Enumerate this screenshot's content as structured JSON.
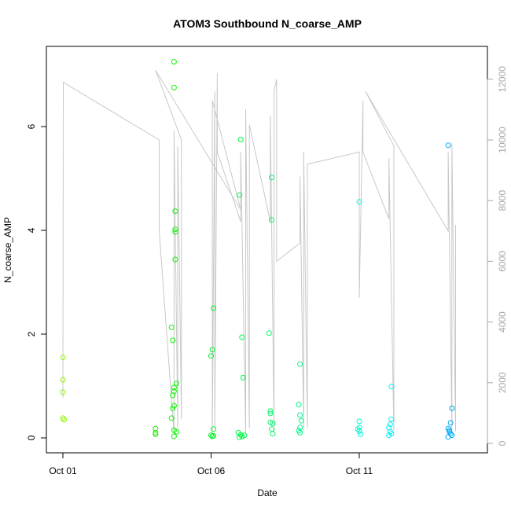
{
  "chart_data": {
    "type": "scatter",
    "title": "ATOM3 Southbound N_coarse_AMP",
    "xlabel": "Date",
    "ylabel": "N_coarse_AMP",
    "x_axis": {
      "type": "date",
      "ticks": [
        {
          "value": "2016-10-01",
          "label": "Oct 01"
        },
        {
          "value": "2016-10-06",
          "label": "Oct 06"
        },
        {
          "value": "2016-10-11",
          "label": "Oct 11"
        }
      ],
      "xlim": [
        "2016-10-01T00:00",
        "2016-10-15T00:00"
      ]
    },
    "y_axis_left": {
      "ticks": [
        0,
        2,
        4,
        6
      ],
      "ylim": [
        -0.3,
        7.5
      ]
    },
    "y_axis_right": {
      "ticks": [
        0,
        2000,
        4000,
        6000,
        8000,
        10000,
        12000
      ],
      "ylim": [
        -300,
        12600
      ],
      "color": "#a6a6a6"
    },
    "grid": false,
    "legend": "none",
    "background_line": {
      "axis": "right",
      "color": "#c8c8c8",
      "points": [
        [
          "2016-10-01T00:00",
          1500
        ],
        [
          "2016-10-01T00:20",
          11900
        ],
        [
          "2016-10-04T06:00",
          10000
        ],
        [
          "2016-10-04T06:00",
          7000
        ],
        [
          "2016-10-04T18:00",
          300
        ],
        [
          "2016-10-04T18:00",
          10300
        ],
        [
          "2016-10-04T21:00",
          500
        ],
        [
          "2016-10-04T21:00",
          9800
        ],
        [
          "2016-10-05T00:00",
          800
        ],
        [
          "2016-10-05T00:00",
          10000
        ],
        [
          "2016-10-04T03:00",
          12300
        ],
        [
          "2016-10-07T00:00",
          7700
        ],
        [
          "2016-10-06T01:00",
          11300
        ],
        [
          "2016-10-06T01:00",
          300
        ],
        [
          "2016-10-06T03:00",
          11600
        ],
        [
          "2016-10-06T03:00",
          500
        ],
        [
          "2016-10-06T05:00",
          12200
        ],
        [
          "2016-10-06T05:00",
          9600
        ],
        [
          "2016-10-07T00:00",
          7300
        ],
        [
          "2016-10-07T00:00",
          9600
        ],
        [
          "2016-10-07T04:00",
          300
        ],
        [
          "2016-10-07T04:00",
          11000
        ],
        [
          "2016-10-07T07:00",
          500
        ],
        [
          "2016-10-07T07:00",
          10500
        ],
        [
          "2016-10-08T00:00",
          7300
        ],
        [
          "2016-10-08T00:00",
          10800
        ],
        [
          "2016-10-08T03:00",
          400
        ],
        [
          "2016-10-08T03:00",
          11600
        ],
        [
          "2016-10-08T05:00",
          12000
        ],
        [
          "2016-10-08T05:00",
          6000
        ],
        [
          "2016-10-09T00:00",
          6600
        ],
        [
          "2016-10-09T00:00",
          8800
        ],
        [
          "2016-10-09T03:00",
          400
        ],
        [
          "2016-10-09T03:00",
          9600
        ],
        [
          "2016-10-09T06:00",
          500
        ],
        [
          "2016-10-09T06:00",
          9200
        ],
        [
          "2016-10-11T00:00",
          9600
        ],
        [
          "2016-10-11T00:00",
          4800
        ],
        [
          "2016-10-11T03:00",
          11300
        ],
        [
          "2016-10-11T03:00",
          9600
        ],
        [
          "2016-10-12T00:00",
          7400
        ],
        [
          "2016-10-12T00:00",
          9400
        ],
        [
          "2016-10-12T04:00",
          400
        ],
        [
          "2016-10-12T04:00",
          9800
        ],
        [
          "2016-10-11T05:00",
          11600
        ],
        [
          "2016-10-14T00:00",
          7000
        ],
        [
          "2016-10-14T00:00",
          9600
        ],
        [
          "2016-10-14T03:00",
          500
        ],
        [
          "2016-10-14T03:00",
          9900
        ],
        [
          "2016-10-14T06:00",
          400
        ],
        [
          "2016-10-14T06:00",
          7200
        ]
      ]
    },
    "series": [
      {
        "axis": "left",
        "marker": "open-circle",
        "points": [
          [
            "2016-10-01T00:00",
            1.55
          ],
          [
            "2016-10-01T00:00",
            1.12
          ],
          [
            "2016-10-01T00:00",
            0.88
          ],
          [
            "2016-10-01T00:00",
            0.38
          ],
          [
            "2016-10-01T01:00",
            0.35
          ],
          [
            "2016-10-04T03:00",
            0.18
          ],
          [
            "2016-10-04T03:00",
            0.1
          ],
          [
            "2016-10-04T03:00",
            0.07
          ],
          [
            "2016-10-04T18:00",
            7.25
          ],
          [
            "2016-10-04T18:00",
            6.75
          ],
          [
            "2016-10-04T19:00",
            4.37
          ],
          [
            "2016-10-04T19:00",
            4.02
          ],
          [
            "2016-10-04T19:00",
            3.97
          ],
          [
            "2016-10-04T19:00",
            3.44
          ],
          [
            "2016-10-04T16:00",
            2.13
          ],
          [
            "2016-10-04T17:00",
            1.88
          ],
          [
            "2016-10-04T20:00",
            1.05
          ],
          [
            "2016-10-04T18:00",
            0.97
          ],
          [
            "2016-10-04T18:00",
            0.9
          ],
          [
            "2016-10-04T17:00",
            0.82
          ],
          [
            "2016-10-04T18:00",
            0.62
          ],
          [
            "2016-10-04T17:00",
            0.57
          ],
          [
            "2016-10-04T16:00",
            0.38
          ],
          [
            "2016-10-04T18:00",
            0.15
          ],
          [
            "2016-10-04T20:00",
            0.12
          ],
          [
            "2016-10-04T18:00",
            0.03
          ],
          [
            "2016-10-06T02:00",
            2.5
          ],
          [
            "2016-10-06T01:00",
            1.7
          ],
          [
            "2016-10-06T00:00",
            1.58
          ],
          [
            "2016-10-06T02:00",
            0.17
          ],
          [
            "2016-10-06T00:00",
            0.05
          ],
          [
            "2016-10-06T01:00",
            0.03
          ],
          [
            "2016-10-06T02:00",
            0.04
          ],
          [
            "2016-10-07T00:00",
            5.75
          ],
          [
            "2016-10-06T23:00",
            4.68
          ],
          [
            "2016-10-07T01:00",
            1.94
          ],
          [
            "2016-10-07T02:00",
            1.16
          ],
          [
            "2016-10-06T22:00",
            0.1
          ],
          [
            "2016-10-07T00:00",
            0.06
          ],
          [
            "2016-10-07T01:00",
            0.03
          ],
          [
            "2016-10-07T03:00",
            0.05
          ],
          [
            "2016-10-06T23:00",
            0.01
          ],
          [
            "2016-10-08T01:00",
            5.02
          ],
          [
            "2016-10-08T01:00",
            4.2
          ],
          [
            "2016-10-07T23:00",
            2.02
          ],
          [
            "2016-10-08T00:00",
            0.52
          ],
          [
            "2016-10-08T00:00",
            0.47
          ],
          [
            "2016-10-08T00:00",
            0.3
          ],
          [
            "2016-10-08T02:00",
            0.28
          ],
          [
            "2016-10-08T01:00",
            0.17
          ],
          [
            "2016-10-08T02:00",
            0.08
          ],
          [
            "2016-10-09T00:00",
            1.42
          ],
          [
            "2016-10-08T23:00",
            0.64
          ],
          [
            "2016-10-09T00:00",
            0.44
          ],
          [
            "2016-10-09T01:00",
            0.33
          ],
          [
            "2016-10-09T00:00",
            0.2
          ],
          [
            "2016-10-08T23:00",
            0.14
          ],
          [
            "2016-10-09T00:00",
            0.1
          ],
          [
            "2016-10-11T00:00",
            4.55
          ],
          [
            "2016-10-11T00:00",
            0.32
          ],
          [
            "2016-10-11T00:00",
            0.2
          ],
          [
            "2016-10-11T00:00",
            0.13
          ],
          [
            "2016-10-10T23:00",
            0.17
          ],
          [
            "2016-10-11T01:00",
            0.07
          ],
          [
            "2016-10-12T02:00",
            0.99
          ],
          [
            "2016-10-12T02:00",
            0.36
          ],
          [
            "2016-10-12T01:00",
            0.26
          ],
          [
            "2016-10-12T00:00",
            0.2
          ],
          [
            "2016-10-12T01:00",
            0.12
          ],
          [
            "2016-10-12T00:00",
            0.05
          ],
          [
            "2016-10-12T02:00",
            0.08
          ],
          [
            "2016-10-14T00:00",
            5.64
          ],
          [
            "2016-10-14T03:00",
            0.57
          ],
          [
            "2016-10-14T02:00",
            0.29
          ],
          [
            "2016-10-14T00:00",
            0.18
          ],
          [
            "2016-10-14T01:00",
            0.12
          ],
          [
            "2016-10-14T02:00",
            0.08
          ],
          [
            "2016-10-14T03:00",
            0.05
          ],
          [
            "2016-10-14T00:00",
            0.02
          ],
          [
            "2016-10-14T01:00",
            0.15
          ]
        ]
      }
    ]
  }
}
